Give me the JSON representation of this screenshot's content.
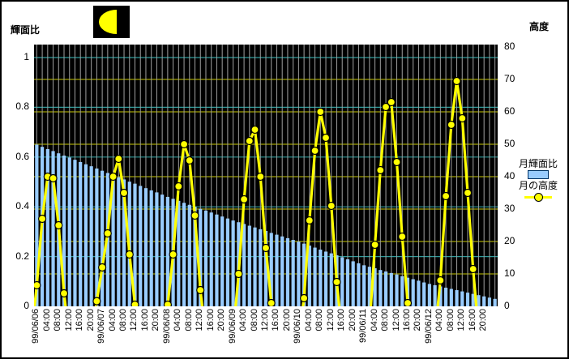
{
  "window": {
    "description": "Moon illuminated-fraction and altitude chart, 1999/06/06 - 1999/06/13"
  },
  "left_axis_title": "輝面比",
  "right_axis_title": "高度",
  "legend": {
    "bar_label": "月輝面比",
    "line_label": "月の高度"
  },
  "colors": {
    "plot_bg": "#000000",
    "bar_fill": "#99CCFF",
    "bar_legend_border": "#003366",
    "line": "#FFFF00",
    "marker_fill": "#FFFF00",
    "marker_stroke": "#000000",
    "grid_vertical": "#A0A0A0",
    "grid_left_scale": "#2E9B9B",
    "grid_right_scale": "#A0A000",
    "moon_icon_bg": "#000000",
    "moon_icon_fill": "#FFFF00",
    "text": "#000000"
  },
  "chart_data": {
    "type": "bar+line combo",
    "time_base": "2-hour slots starting 99/06/06 00:00",
    "left_axis": {
      "title": "輝面比",
      "range": [
        0,
        1
      ],
      "ticks": [
        "1",
        "0.8",
        "0.6",
        "0.4",
        "0.2",
        "0"
      ],
      "tick_values": [
        1,
        0.8,
        0.6,
        0.4,
        0.2,
        0
      ]
    },
    "right_axis": {
      "title": "高度",
      "range": [
        0,
        80
      ],
      "ticks": [
        "80",
        "70",
        "60",
        "50",
        "40",
        "30",
        "20",
        "10",
        "0"
      ],
      "tick_values": [
        80,
        70,
        60,
        50,
        40,
        30,
        20,
        10,
        0
      ]
    },
    "x_tick_labels": [
      {
        "slot": 0,
        "text": "99/06/06"
      },
      {
        "slot": 2,
        "text": "04:00"
      },
      {
        "slot": 4,
        "text": "08:00"
      },
      {
        "slot": 6,
        "text": "12:00"
      },
      {
        "slot": 8,
        "text": "16:00"
      },
      {
        "slot": 10,
        "text": "20:00"
      },
      {
        "slot": 12,
        "text": "99/06/07"
      },
      {
        "slot": 14,
        "text": "04:00"
      },
      {
        "slot": 16,
        "text": "08:00"
      },
      {
        "slot": 18,
        "text": "12:00"
      },
      {
        "slot": 20,
        "text": "16:00"
      },
      {
        "slot": 22,
        "text": "20:00"
      },
      {
        "slot": 24,
        "text": "99/06/08"
      },
      {
        "slot": 26,
        "text": "04:00"
      },
      {
        "slot": 28,
        "text": "08:00"
      },
      {
        "slot": 30,
        "text": "12:00"
      },
      {
        "slot": 32,
        "text": "16:00"
      },
      {
        "slot": 34,
        "text": "20:00"
      },
      {
        "slot": 36,
        "text": "99/06/09"
      },
      {
        "slot": 38,
        "text": "04:00"
      },
      {
        "slot": 40,
        "text": "08:00"
      },
      {
        "slot": 42,
        "text": "12:00"
      },
      {
        "slot": 44,
        "text": "16:00"
      },
      {
        "slot": 46,
        "text": "20:00"
      },
      {
        "slot": 48,
        "text": "99/06/10"
      },
      {
        "slot": 50,
        "text": "04:00"
      },
      {
        "slot": 52,
        "text": "08:00"
      },
      {
        "slot": 54,
        "text": "12:00"
      },
      {
        "slot": 56,
        "text": "16:00"
      },
      {
        "slot": 58,
        "text": "20:00"
      },
      {
        "slot": 60,
        "text": "99/06/11"
      },
      {
        "slot": 62,
        "text": "04:00"
      },
      {
        "slot": 64,
        "text": "08:00"
      },
      {
        "slot": 66,
        "text": "12:00"
      },
      {
        "slot": 68,
        "text": "16:00"
      },
      {
        "slot": 70,
        "text": "20:00"
      },
      {
        "slot": 72,
        "text": "99/06/12"
      },
      {
        "slot": 74,
        "text": "04:00"
      },
      {
        "slot": 76,
        "text": "08:00"
      },
      {
        "slot": 78,
        "text": "12:00"
      },
      {
        "slot": 80,
        "text": "16:00"
      },
      {
        "slot": 82,
        "text": "20:00"
      }
    ],
    "bars": {
      "name": "月輝面比",
      "axis": "left",
      "interval_hours": 2,
      "values": [
        0.65,
        0.641,
        0.632,
        0.624,
        0.615,
        0.606,
        0.598,
        0.589,
        0.58,
        0.571,
        0.563,
        0.554,
        0.545,
        0.536,
        0.528,
        0.519,
        0.51,
        0.501,
        0.493,
        0.484,
        0.475,
        0.466,
        0.458,
        0.449,
        0.44,
        0.432,
        0.424,
        0.416,
        0.408,
        0.4,
        0.392,
        0.385,
        0.377,
        0.369,
        0.361,
        0.353,
        0.345,
        0.338,
        0.331,
        0.324,
        0.317,
        0.31,
        0.303,
        0.295,
        0.288,
        0.281,
        0.274,
        0.267,
        0.26,
        0.252,
        0.244,
        0.236,
        0.228,
        0.22,
        0.213,
        0.205,
        0.197,
        0.189,
        0.181,
        0.173,
        0.165,
        0.159,
        0.153,
        0.146,
        0.14,
        0.134,
        0.128,
        0.121,
        0.115,
        0.109,
        0.103,
        0.096,
        0.09,
        0.085,
        0.08,
        0.075,
        0.07,
        0.065,
        0.06,
        0.055,
        0.05,
        0.045,
        0.04,
        0.035,
        0.03
      ]
    },
    "line": {
      "name": "月の高度",
      "axis": "right",
      "segments": [
        [
          [
            0,
            6.5
          ],
          [
            1,
            27
          ],
          [
            2,
            40
          ],
          [
            3,
            39.5
          ],
          [
            4,
            25
          ],
          [
            5,
            4
          ]
        ],
        [
          [
            11,
            1.6
          ],
          [
            12,
            12
          ],
          [
            13,
            22.5
          ],
          [
            14,
            40
          ],
          [
            15,
            45.5
          ],
          [
            16,
            35
          ],
          [
            17,
            16
          ],
          [
            18,
            0.5
          ]
        ],
        [
          [
            24,
            0.5
          ],
          [
            25,
            16
          ],
          [
            26,
            37
          ],
          [
            27,
            50
          ],
          [
            28,
            45
          ],
          [
            29,
            28
          ],
          [
            30,
            5
          ]
        ],
        [
          [
            37,
            10
          ],
          [
            38,
            33
          ],
          [
            39,
            51
          ],
          [
            40,
            54.5
          ],
          [
            41,
            40
          ],
          [
            42,
            18
          ],
          [
            43,
            1
          ]
        ],
        [
          [
            49,
            2.5
          ],
          [
            50,
            26.5
          ],
          [
            51,
            48
          ],
          [
            52,
            60
          ],
          [
            53,
            52
          ],
          [
            54,
            31
          ],
          [
            55,
            7.5
          ]
        ],
        [
          [
            62,
            19
          ],
          [
            63,
            42
          ],
          [
            64,
            61.5
          ],
          [
            65,
            63
          ],
          [
            66,
            44.5
          ],
          [
            67,
            21.5
          ],
          [
            68,
            1
          ]
        ],
        [
          [
            74,
            8
          ],
          [
            75,
            34
          ],
          [
            76,
            56
          ],
          [
            77,
            69.5
          ],
          [
            78,
            58
          ],
          [
            79,
            35
          ],
          [
            80,
            11.5
          ]
        ]
      ],
      "daily_peaks": [
        40,
        45.5,
        50,
        54.5,
        60,
        63,
        69.5
      ]
    }
  }
}
